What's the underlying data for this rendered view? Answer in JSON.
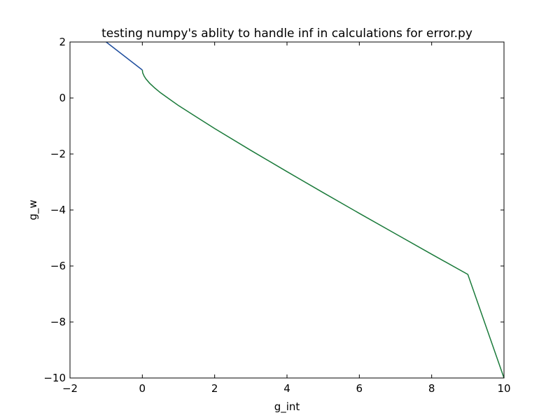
{
  "chart_data": {
    "type": "line",
    "title": "testing numpy's ablity to handle inf in calculations for error.py",
    "xlabel": "g_int",
    "ylabel": "g_w",
    "xlim": [
      -2,
      10
    ],
    "ylim": [
      -10,
      2
    ],
    "xticks": [
      -2,
      0,
      2,
      4,
      6,
      8,
      10
    ],
    "yticks": [
      -10,
      -8,
      -6,
      -4,
      -2,
      0,
      2
    ],
    "xtick_labels": [
      "−2",
      "0",
      "2",
      "4",
      "6",
      "8",
      "10"
    ],
    "ytick_labels": [
      "−10",
      "−8",
      "−6",
      "−4",
      "−2",
      "0",
      "2"
    ],
    "grid": false,
    "legend": false,
    "series": [
      {
        "color": "#1f4e9e",
        "x": [
          -1.0,
          -0.5,
          0.0
        ],
        "y": [
          2.0,
          1.5,
          1.0
        ]
      },
      {
        "color": "#1a7a3a",
        "x": [
          0.0,
          0.01,
          0.05,
          0.1,
          0.2,
          0.35,
          0.5,
          0.75,
          1.0,
          1.5,
          2.0,
          3.0,
          4.0,
          5.0,
          6.0,
          7.0,
          8.0,
          9.0,
          10.0
        ],
        "y": [
          1.0,
          0.9,
          0.78,
          0.68,
          0.53,
          0.35,
          0.19,
          -0.04,
          -0.27,
          -0.68,
          -1.09,
          -1.87,
          -2.63,
          -3.38,
          -4.12,
          -4.85,
          -5.58,
          -6.3,
          -10.0
        ]
      }
    ]
  }
}
